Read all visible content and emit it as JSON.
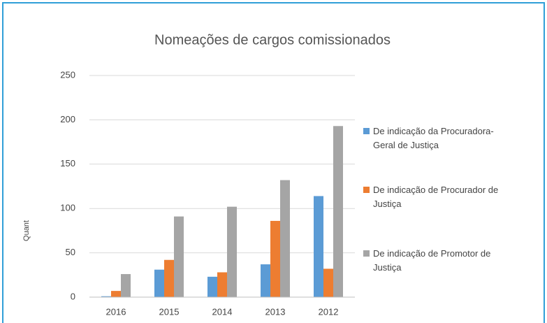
{
  "chart_data": {
    "type": "bar",
    "title": "Nomeações de cargos comissionados",
    "y_label": "Quant",
    "categories": [
      "2016",
      "2015",
      "2014",
      "2013",
      "2012"
    ],
    "series": [
      {
        "name": "De indicação da Procuradora-Geral de Justiça",
        "color": "#5b9bd5",
        "values": [
          1,
          31,
          23,
          37,
          114
        ]
      },
      {
        "name": "De indicação de Procurador de Justiça",
        "color": "#ed7d31",
        "values": [
          7,
          42,
          28,
          86,
          32
        ]
      },
      {
        "name": "De indicação de Promotor de Justiça",
        "color": "#a5a5a5",
        "values": [
          26,
          91,
          102,
          132,
          193
        ]
      }
    ],
    "ylim": [
      0,
      250
    ],
    "yticks": [
      0,
      50,
      100,
      150,
      200,
      250
    ],
    "grid": true
  }
}
